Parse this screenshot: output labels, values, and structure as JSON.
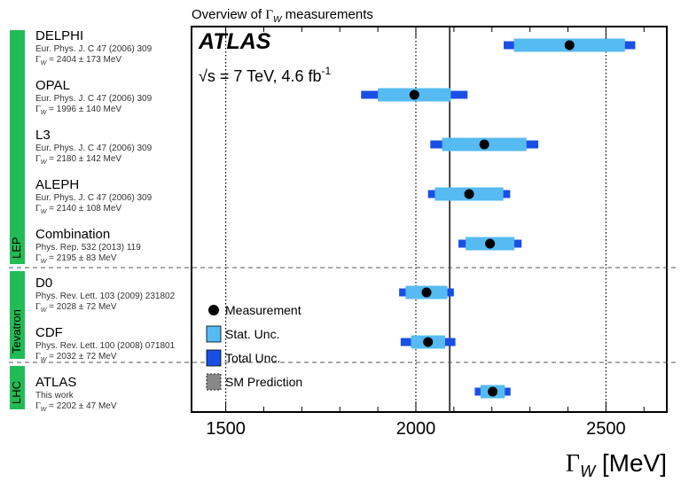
{
  "chart_data": {
    "type": "scatter",
    "title_prefix": "Overview of ",
    "title_symbol": "Γ",
    "title_sub": "W",
    "title_suffix": " measurements",
    "experiment": "ATLAS",
    "energy_label": "√s = 7 TeV, 4.6 fb",
    "energy_sup": "-1",
    "xlabel_symbol": "Γ",
    "xlabel_sub": "W",
    "xlabel_unit": " [MeV]",
    "xlim": [
      1410,
      2660
    ],
    "xticks": [
      1500,
      2000,
      2500
    ],
    "dotted_gridlines": [
      1500,
      2000,
      2500
    ],
    "sm_prediction": 2089,
    "groups": [
      {
        "name": "LEP",
        "color": "#22bb55",
        "first_row": 0,
        "last_row": 4
      },
      {
        "name": "Tevatron",
        "color": "#22bb55",
        "first_row": 5,
        "last_row": 6
      },
      {
        "name": "LHC",
        "color": "#22bb55",
        "first_row": 7,
        "last_row": 7
      }
    ],
    "measurements": [
      {
        "name": "DELPHI",
        "ref": "Eur. Phys. J. C 47 (2006) 309",
        "value_text": " = 2404 ± 173 MeV",
        "value": 2404,
        "stat": 146,
        "total": 173
      },
      {
        "name": "OPAL",
        "ref": "Eur. Phys. J. C 47 (2006) 309",
        "value_text": " = 1996 ± 140 MeV",
        "value": 1996,
        "stat": 96,
        "total": 140
      },
      {
        "name": "L3",
        "ref": "Eur. Phys. J. C 47 (2006) 309",
        "value_text": " = 2180 ± 142 MeV",
        "value": 2180,
        "stat": 111,
        "total": 142
      },
      {
        "name": "ALEPH",
        "ref": "Eur. Phys. J. C 47 (2006) 309",
        "value_text": " = 2140 ± 108 MeV",
        "value": 2140,
        "stat": 90,
        "total": 108
      },
      {
        "name": "Combination",
        "ref": "Phys. Rep. 532 (2013) 119",
        "value_text": " = 2195 ± 83 MeV",
        "value": 2195,
        "stat": 64,
        "total": 83
      },
      {
        "name": "D0",
        "ref": "Phys. Rev. Lett. 103 (2009) 231802",
        "value_text": " = 2028 ± 72 MeV",
        "value": 2028,
        "stat": 55,
        "total": 72
      },
      {
        "name": "CDF",
        "ref": "Phys. Rev. Lett. 100 (2008) 071801",
        "value_text": " = 2032 ± 72 MeV",
        "value": 2032,
        "stat": 45,
        "total": 72
      },
      {
        "name": "ATLAS",
        "ref": "This work",
        "value_text": " = 2202 ± 47 MeV",
        "value": 2202,
        "stat": 32,
        "total": 47
      }
    ],
    "legend": [
      {
        "label": "Measurement",
        "kind": "marker"
      },
      {
        "label": "Stat. Unc.",
        "kind": "stat"
      },
      {
        "label": "Total Unc.",
        "kind": "total"
      },
      {
        "label": "SM Prediction",
        "kind": "sm"
      }
    ],
    "colors": {
      "stat": "#55bbf2",
      "total": "#1a4fe6",
      "marker": "#000000",
      "group_band": "#22bb55",
      "sm_box": "#888888"
    }
  }
}
